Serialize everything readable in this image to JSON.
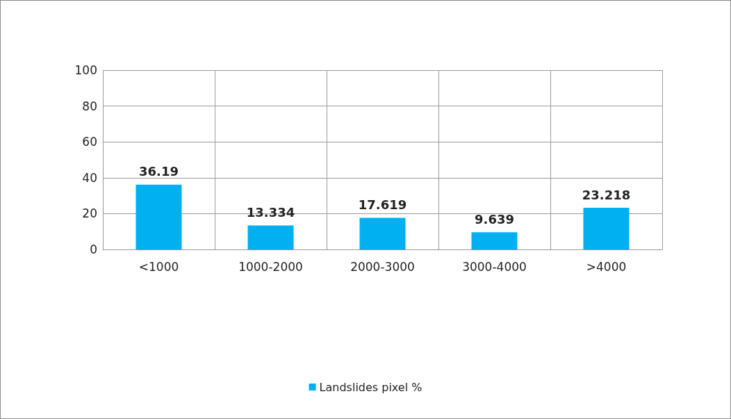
{
  "chart_data": {
    "type": "bar",
    "categories": [
      "<1000",
      "1000-2000",
      "2000-3000",
      "3000-4000",
      ">4000"
    ],
    "series": [
      {
        "name": "Landslides pixel %",
        "color": "#00b0f0",
        "values": [
          36.19,
          13.334,
          17.619,
          9.639,
          23.218
        ]
      }
    ],
    "ylim": [
      0,
      100
    ],
    "yticks": [
      0,
      20,
      40,
      60,
      80,
      100
    ],
    "grid": true,
    "legend": "bottom",
    "data_labels": true
  }
}
